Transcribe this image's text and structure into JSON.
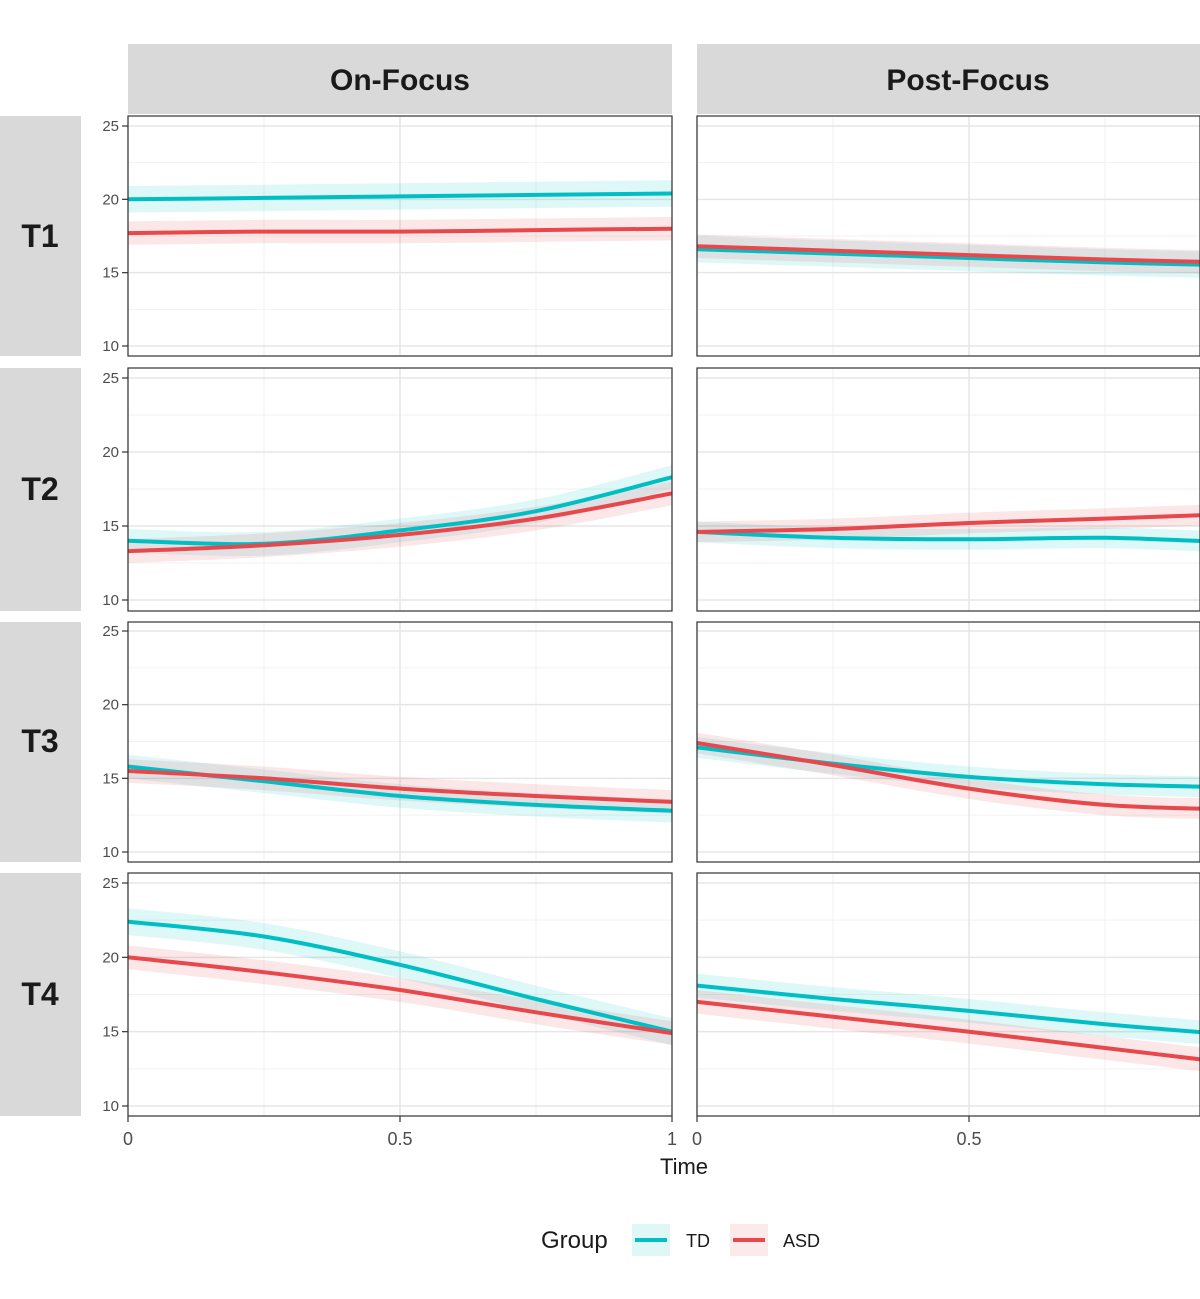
{
  "chart_data": {
    "type": "line",
    "col_facets": [
      "On-Focus",
      "Post-Focus"
    ],
    "row_facets": [
      "T1",
      "T2",
      "T3",
      "T4"
    ],
    "xlabel": "Time",
    "ylabel": "",
    "xlim": [
      0,
      1
    ],
    "ylim": [
      10,
      25
    ],
    "x_ticks": [
      0,
      0.5,
      1
    ],
    "y_ticks": [
      10,
      15,
      20,
      25
    ],
    "grid": true,
    "confidence_bands": true,
    "legend": {
      "title": "Group",
      "position": "bottom",
      "items": [
        {
          "name": "TD",
          "color": "#00BFC4"
        },
        {
          "name": "ASD",
          "color": "#E8474C"
        }
      ]
    },
    "panels": [
      {
        "col": "On-Focus",
        "row": "T1",
        "x": [
          0,
          0.25,
          0.5,
          0.75,
          1
        ],
        "series": [
          {
            "name": "TD",
            "values": [
              20.0,
              20.1,
              20.2,
              20.3,
              20.4
            ],
            "band": 0.9
          },
          {
            "name": "ASD",
            "values": [
              17.7,
              17.8,
              17.8,
              17.9,
              18.0
            ],
            "band": 0.8
          }
        ]
      },
      {
        "col": "Post-Focus",
        "row": "T1",
        "x": [
          0,
          0.25,
          0.5,
          0.75,
          0.98
        ],
        "series": [
          {
            "name": "TD",
            "values": [
              16.6,
              16.3,
              16.0,
              15.7,
              15.5
            ],
            "band": 0.9
          },
          {
            "name": "ASD",
            "values": [
              16.8,
              16.5,
              16.2,
              15.9,
              15.7
            ],
            "band": 0.8
          }
        ]
      },
      {
        "col": "On-Focus",
        "row": "T2",
        "x": [
          0,
          0.25,
          0.5,
          0.75,
          1
        ],
        "series": [
          {
            "name": "TD",
            "values": [
              14.0,
              13.8,
              14.7,
              16.0,
              18.3
            ],
            "band": 0.8
          },
          {
            "name": "ASD",
            "values": [
              13.3,
              13.7,
              14.4,
              15.5,
              17.2
            ],
            "band": 0.8
          }
        ]
      },
      {
        "col": "Post-Focus",
        "row": "T2",
        "x": [
          0,
          0.25,
          0.5,
          0.75,
          0.98
        ],
        "series": [
          {
            "name": "TD",
            "values": [
              14.6,
              14.2,
              14.1,
              14.2,
              13.9
            ],
            "band": 0.7
          },
          {
            "name": "ASD",
            "values": [
              14.6,
              14.8,
              15.2,
              15.5,
              15.8
            ],
            "band": 0.7
          }
        ]
      },
      {
        "col": "On-Focus",
        "row": "T3",
        "x": [
          0,
          0.25,
          0.5,
          0.75,
          1
        ],
        "series": [
          {
            "name": "TD",
            "values": [
              15.8,
              14.8,
              13.8,
              13.2,
              12.8
            ],
            "band": 0.8
          },
          {
            "name": "ASD",
            "values": [
              15.5,
              15.0,
              14.3,
              13.8,
              13.4
            ],
            "band": 0.8
          }
        ]
      },
      {
        "col": "Post-Focus",
        "row": "T3",
        "x": [
          0,
          0.25,
          0.5,
          0.75,
          0.98
        ],
        "series": [
          {
            "name": "TD",
            "values": [
              17.1,
              16.0,
              15.1,
              14.6,
              14.4
            ],
            "band": 0.7
          },
          {
            "name": "ASD",
            "values": [
              17.4,
              15.9,
              14.3,
              13.2,
              12.9
            ],
            "band": 0.7
          }
        ]
      },
      {
        "col": "On-Focus",
        "row": "T4",
        "x": [
          0,
          0.25,
          0.5,
          0.75,
          1
        ],
        "series": [
          {
            "name": "TD",
            "values": [
              22.4,
              21.4,
              19.5,
              17.2,
              15.0
            ],
            "band": 0.9
          },
          {
            "name": "ASD",
            "values": [
              20.0,
              19.0,
              17.8,
              16.3,
              14.9
            ],
            "band": 0.8
          }
        ]
      },
      {
        "col": "Post-Focus",
        "row": "T4",
        "x": [
          0,
          0.25,
          0.5,
          0.75,
          0.98
        ],
        "series": [
          {
            "name": "TD",
            "values": [
              18.1,
              17.2,
              16.4,
              15.5,
              14.8
            ],
            "band": 0.8
          },
          {
            "name": "ASD",
            "values": [
              17.0,
              16.0,
              15.0,
              13.9,
              12.9
            ],
            "band": 0.8
          }
        ]
      }
    ]
  }
}
